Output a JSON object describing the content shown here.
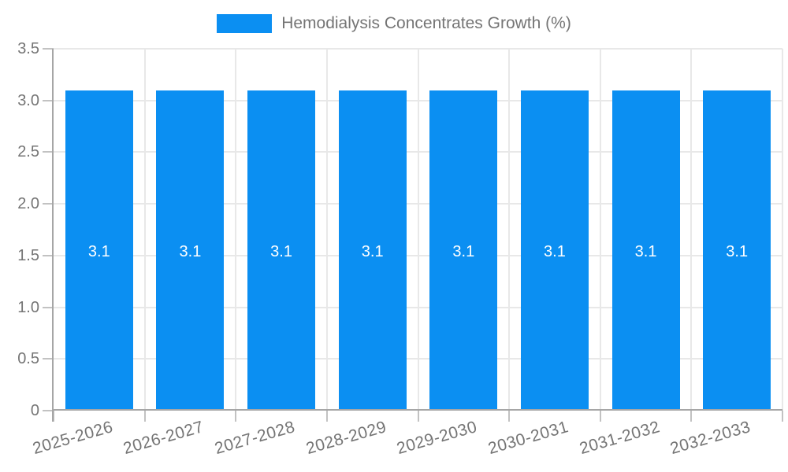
{
  "legend": {
    "label": "Hemodialysis Concentrates Growth (%)"
  },
  "chart_data": {
    "type": "bar",
    "title": "",
    "xlabel": "",
    "ylabel": "",
    "categories": [
      "2025-2026",
      "2026-2027",
      "2027-2028",
      "2028-2029",
      "2029-2030",
      "2030-2031",
      "2031-2032",
      "2032-2033"
    ],
    "values": [
      3.1,
      3.1,
      3.1,
      3.1,
      3.1,
      3.1,
      3.1,
      3.1
    ],
    "bar_value_labels": [
      "3.1",
      "3.1",
      "3.1",
      "3.1",
      "3.1",
      "3.1",
      "3.1",
      "3.1"
    ],
    "series_name": "Hemodialysis Concentrates Growth (%)",
    "ylim": [
      0,
      3.5
    ],
    "ytick_values": [
      0,
      0.5,
      1,
      1.5,
      2,
      2.5,
      3,
      3.5
    ],
    "ytick_labels": [
      "0",
      "0.5",
      "1.0",
      "1.5",
      "2.0",
      "2.5",
      "3.0",
      "3.5"
    ],
    "grid": true,
    "legend_position": "top"
  },
  "colors": {
    "bar": "#0b8ff2",
    "gridline": "#e8e8e8",
    "tick": "#c2c2c2",
    "axis_line": "#a6a6a6",
    "label_text": "#757575",
    "value_label": "#ffffff",
    "background": "#ffffff"
  }
}
